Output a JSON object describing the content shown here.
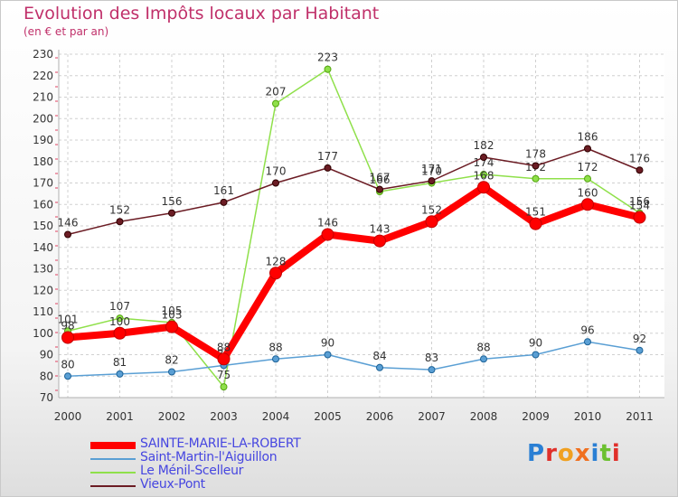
{
  "chart_data": {
    "type": "line",
    "title": "Evolution des Impôts locaux par Habitant",
    "subtitle": "(en € et par an)",
    "categories": [
      "2000",
      "2001",
      "2002",
      "2003",
      "2004",
      "2005",
      "2006",
      "2007",
      "2008",
      "2009",
      "2010",
      "2011"
    ],
    "ylim": [
      70,
      230
    ],
    "yticks": [
      70,
      80,
      90,
      100,
      110,
      120,
      130,
      140,
      150,
      160,
      170,
      180,
      190,
      200,
      210,
      220,
      230
    ],
    "grid": true,
    "legend_position": "bottom-left",
    "series": [
      {
        "name": "SAINTE-MARIE-LA-ROBERT",
        "color": "#ff0000",
        "values": [
          98,
          100,
          103,
          88,
          128,
          146,
          143,
          152,
          168,
          151,
          160,
          154
        ]
      },
      {
        "name": "Saint-Martin-l'Aiguillon",
        "color": "#5a9fd4",
        "values": [
          80,
          81,
          82,
          85,
          88,
          90,
          84,
          83,
          88,
          90,
          96,
          92
        ]
      },
      {
        "name": "Le Ménil-Scelleur",
        "color": "#8fe04a",
        "values": [
          101,
          107,
          105,
          75,
          207,
          223,
          166,
          170,
          174,
          172,
          172,
          156
        ]
      },
      {
        "name": "Vieux-Pont",
        "color": "#6b1c24",
        "values": [
          146,
          152,
          156,
          161,
          170,
          177,
          167,
          171,
          182,
          178,
          186,
          176
        ]
      }
    ]
  },
  "logo": {
    "text": "Proxiti"
  }
}
